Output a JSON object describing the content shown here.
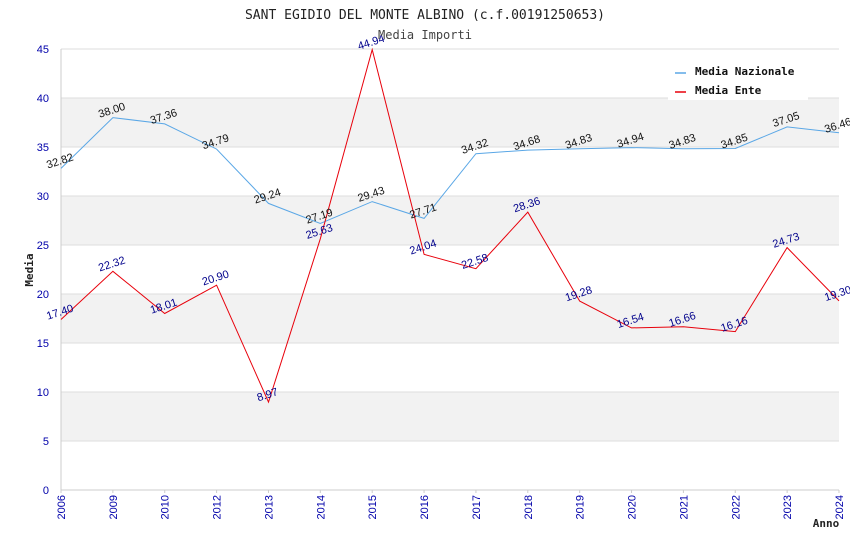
{
  "chart_data": {
    "type": "line",
    "title": "SANT EGIDIO DEL MONTE ALBINO (c.f.00191250653)",
    "subtitle": "Media Importi",
    "xlabel": "Anno",
    "ylabel": "Media",
    "ylim": [
      0,
      45
    ],
    "yticks": [
      "0",
      "5",
      "10",
      "15",
      "20",
      "25",
      "30",
      "35",
      "40",
      "45"
    ],
    "categories": [
      "2006",
      "2009",
      "2010",
      "2012",
      "2013",
      "2014",
      "2015",
      "2016",
      "2017",
      "2018",
      "2019",
      "2020",
      "2021",
      "2022",
      "2023",
      "2024"
    ],
    "series": [
      {
        "name": "Media Nazionale",
        "color": "#5aa7e6",
        "label_color": "#111111",
        "values": [
          32.82,
          38.0,
          37.36,
          34.79,
          29.24,
          27.19,
          29.43,
          27.71,
          34.32,
          34.68,
          34.83,
          34.94,
          34.83,
          34.85,
          37.05,
          36.46
        ],
        "labels": [
          "32.82",
          "38.00",
          "37.36",
          "34.79",
          "29.24",
          "27.19",
          "29.43",
          "27.71",
          "34.32",
          "34.68",
          "34.83",
          "34.94",
          "34.83",
          "34.85",
          "37.05",
          "36.46"
        ]
      },
      {
        "name": "Media Ente",
        "color": "#e8000b",
        "label_color": "#00008b",
        "values": [
          17.4,
          22.32,
          18.01,
          20.9,
          8.97,
          25.63,
          44.94,
          24.04,
          22.58,
          28.36,
          19.28,
          16.54,
          16.66,
          16.16,
          24.73,
          19.3
        ],
        "labels": [
          "17.40",
          "22.32",
          "18.01",
          "20.90",
          "8.97",
          "25.63",
          "44.94",
          "24.04",
          "22.58",
          "28.36",
          "19.28",
          "16.54",
          "16.66",
          "16.16",
          "24.73",
          "19.30"
        ]
      }
    ],
    "legend_position": "top-right",
    "grid": true
  }
}
